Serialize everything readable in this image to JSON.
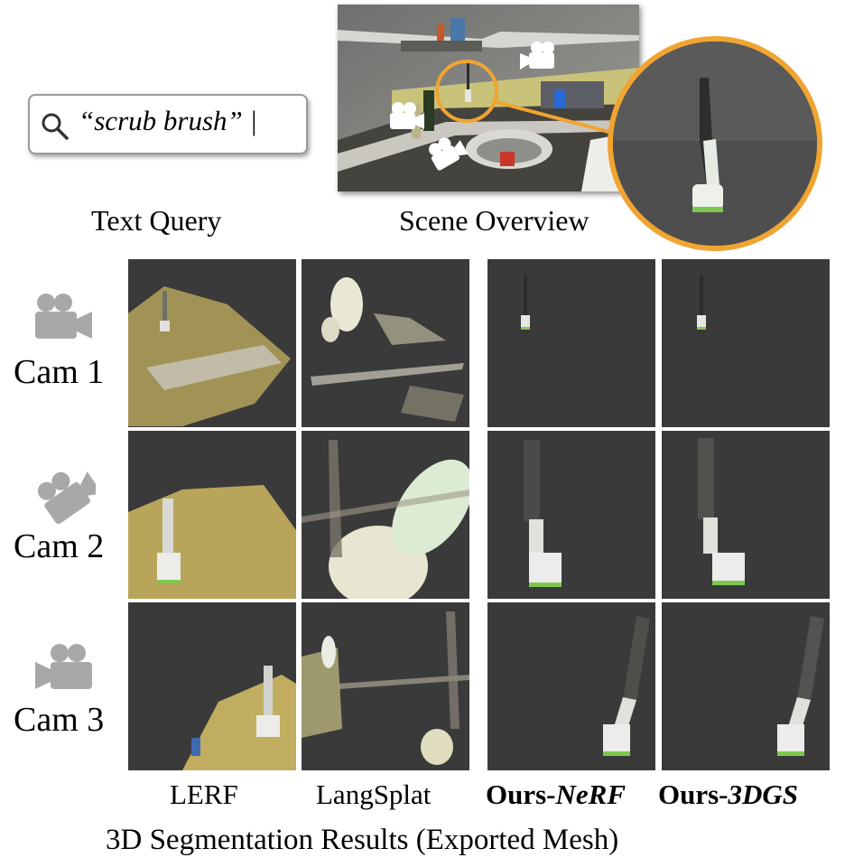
{
  "query": {
    "text": "“scrub brush” |"
  },
  "captions": {
    "text_query": "Text Query",
    "scene_overview": "Scene Overview"
  },
  "rows": [
    {
      "label": "Cam 1"
    },
    {
      "label": "Cam 2"
    },
    {
      "label": "Cam 3"
    }
  ],
  "columns": [
    {
      "label": "LERF"
    },
    {
      "label": "LangSplat"
    },
    {
      "label_prefix": "Ours-",
      "label_suffix": "NeRF"
    },
    {
      "label_prefix": "Ours-",
      "label_suffix": "3DGS"
    }
  ],
  "footer": {
    "title": "3D Segmentation Results (Exported Mesh)"
  },
  "colors": {
    "accent_ring": "#f0a431",
    "panel_bg": "#3a3a3a",
    "camera_icon_gray": "#a8a8a8",
    "mesh_yellow": "#b8a55a",
    "brush_head_green": "#7ec850"
  },
  "icons": [
    "search-icon",
    "camera-icon"
  ]
}
